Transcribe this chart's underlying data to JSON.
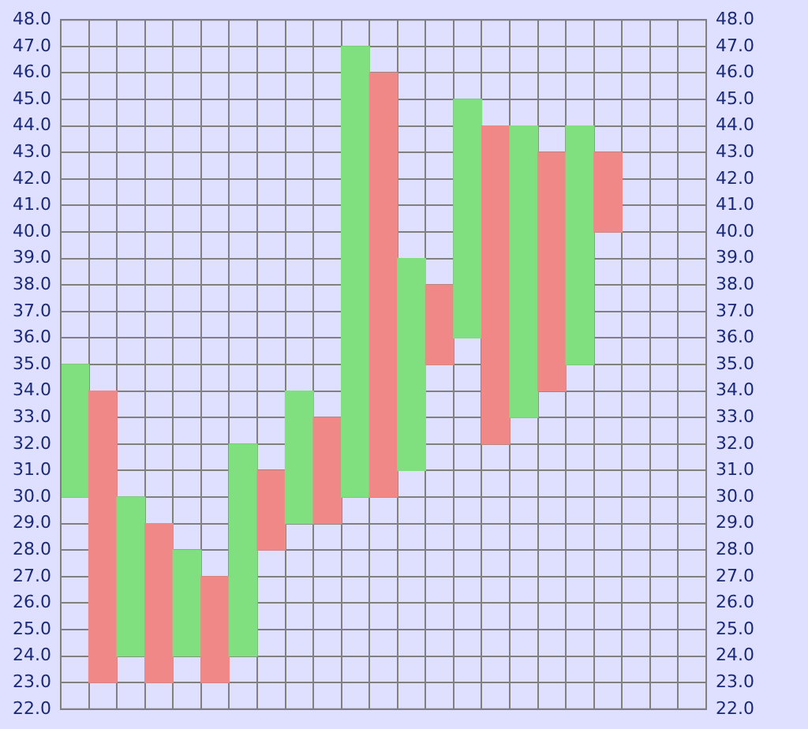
{
  "chart_data": {
    "type": "bar",
    "categories": [
      null,
      null,
      null,
      null,
      null,
      null,
      null,
      null,
      null,
      null,
      null,
      null,
      null,
      null,
      null,
      null,
      null,
      null,
      null,
      null,
      null,
      null,
      null
    ],
    "base": [
      30,
      23,
      24,
      23,
      24,
      23,
      24,
      28,
      29,
      29,
      30,
      30,
      31,
      35,
      36,
      32,
      33,
      34,
      35,
      40,
      null,
      null,
      null
    ],
    "values": [
      5,
      11,
      6,
      6,
      4,
      4,
      8,
      3,
      5,
      4,
      17,
      16,
      8,
      3,
      9,
      12,
      11,
      9,
      9,
      3,
      null,
      null,
      null
    ],
    "colors": [
      "#80e080",
      "#f08888",
      "#80e080",
      "#f08888",
      "#80e080",
      "#f08888",
      "#80e080",
      "#f08888",
      "#80e080",
      "#f08888",
      "#80e080",
      "#f08888",
      "#80e080",
      "#f08888",
      "#80e080",
      "#f08888",
      "#80e080",
      "#f08888",
      "#80e080",
      "#f08888",
      "#80e080",
      "#f08888",
      "#80e080"
    ],
    "ylim": [
      22,
      48
    ],
    "yticks": [
      {
        "value": 22,
        "label": "22.0"
      },
      {
        "value": 23,
        "label": "23.0"
      },
      {
        "value": 24,
        "label": "24.0"
      },
      {
        "value": 25,
        "label": "25.0"
      },
      {
        "value": 26,
        "label": "26.0"
      },
      {
        "value": 27,
        "label": "27.0"
      },
      {
        "value": 28,
        "label": "28.0"
      },
      {
        "value": 29,
        "label": "29.0"
      },
      {
        "value": 30,
        "label": "30.0"
      },
      {
        "value": 31,
        "label": "31.0"
      },
      {
        "value": 32,
        "label": "32.0"
      },
      {
        "value": 33,
        "label": "33.0"
      },
      {
        "value": 34,
        "label": "34.0"
      },
      {
        "value": 35,
        "label": "35.0"
      },
      {
        "value": 36,
        "label": "36.0"
      },
      {
        "value": 37,
        "label": "37.0"
      },
      {
        "value": 38,
        "label": "38.0"
      },
      {
        "value": 39,
        "label": "39.0"
      },
      {
        "value": 40,
        "label": "40.0"
      },
      {
        "value": 41,
        "label": "41.0"
      },
      {
        "value": 42,
        "label": "42.0"
      },
      {
        "value": 43,
        "label": "43.0"
      },
      {
        "value": 44,
        "label": "44.0"
      },
      {
        "value": 45,
        "label": "45.0"
      },
      {
        "value": 46,
        "label": "46.0"
      },
      {
        "value": 47,
        "label": "47.0"
      },
      {
        "value": 48,
        "label": "48.0"
      }
    ],
    "y2lim": [
      22,
      48
    ],
    "y2ticks": [
      {
        "value": 22,
        "label": "22.0"
      },
      {
        "value": 23,
        "label": "23.0"
      },
      {
        "value": 24,
        "label": "24.0"
      },
      {
        "value": 25,
        "label": "25.0"
      },
      {
        "value": 26,
        "label": "26.0"
      },
      {
        "value": 27,
        "label": "27.0"
      },
      {
        "value": 28,
        "label": "28.0"
      },
      {
        "value": 29,
        "label": "29.0"
      },
      {
        "value": 30,
        "label": "30.0"
      },
      {
        "value": 31,
        "label": "31.0"
      },
      {
        "value": 32,
        "label": "32.0"
      },
      {
        "value": 33,
        "label": "33.0"
      },
      {
        "value": 34,
        "label": "34.0"
      },
      {
        "value": 35,
        "label": "35.0"
      },
      {
        "value": 36,
        "label": "36.0"
      },
      {
        "value": 37,
        "label": "37.0"
      },
      {
        "value": 38,
        "label": "38.0"
      },
      {
        "value": 39,
        "label": "39.0"
      },
      {
        "value": 40,
        "label": "40.0"
      },
      {
        "value": 41,
        "label": "41.0"
      },
      {
        "value": 42,
        "label": "42.0"
      },
      {
        "value": 43,
        "label": "43.0"
      },
      {
        "value": 44,
        "label": "44.0"
      },
      {
        "value": 45,
        "label": "45.0"
      },
      {
        "value": 46,
        "label": "46.0"
      },
      {
        "value": 47,
        "label": "47.0"
      },
      {
        "value": 48,
        "label": "48.0"
      }
    ],
    "grid": true,
    "tick_labels": "y"
  }
}
